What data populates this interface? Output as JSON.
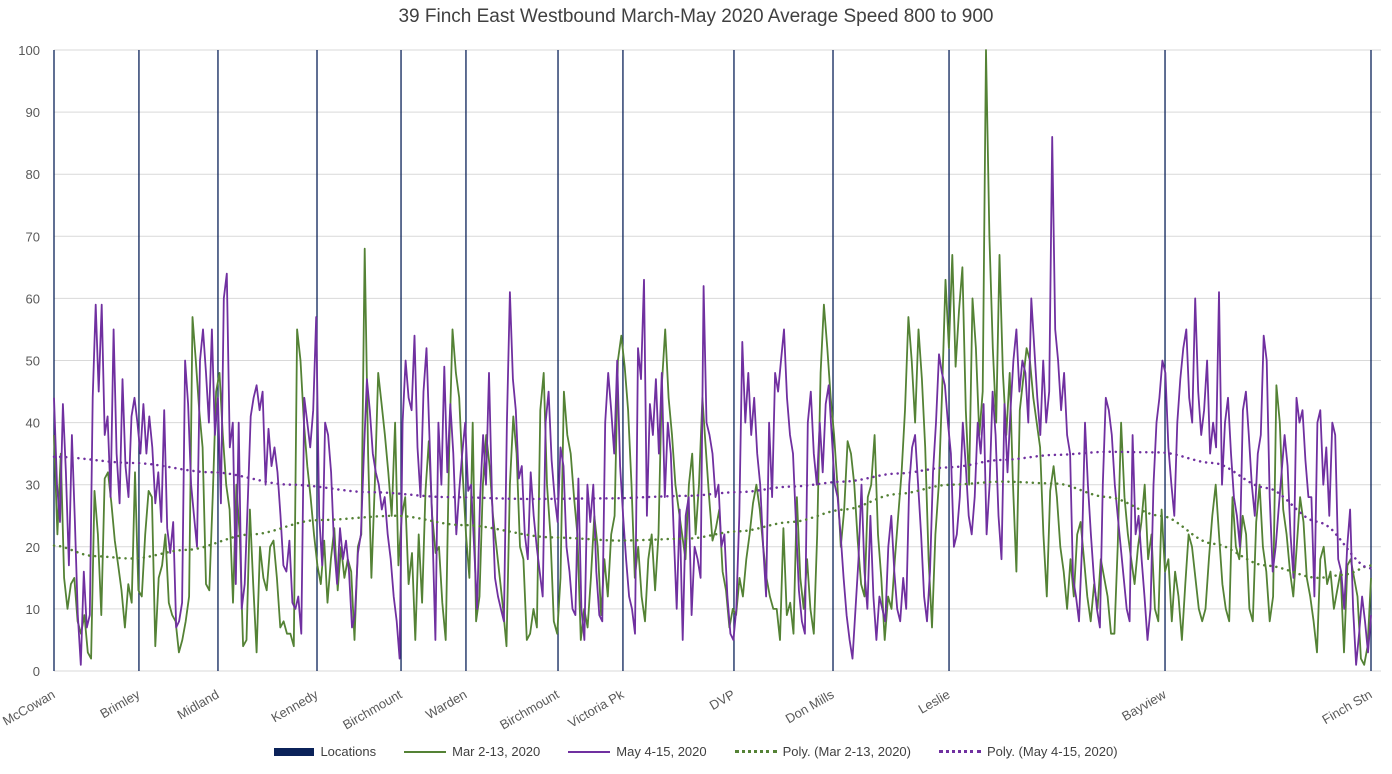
{
  "chart_data": {
    "type": "line",
    "title": "39 Finch East Westbound March-May 2020 Average Speed 800 to 900",
    "xlabel": "",
    "ylabel": "",
    "ylim": [
      0,
      100
    ],
    "yticks": [
      "0",
      "10",
      "20",
      "30",
      "40",
      "50",
      "60",
      "70",
      "80",
      "90",
      "100"
    ],
    "grid": true,
    "legend_position": "bottom",
    "x_range": [
      0,
      100
    ],
    "locations": [
      {
        "name": "McCowan",
        "x": 0
      },
      {
        "name": "Brimley",
        "x": 6.45
      },
      {
        "name": "Midland",
        "x": 12.45
      },
      {
        "name": "Kennedy",
        "x": 19.97
      },
      {
        "name": "Birchmount",
        "x": 26.35
      },
      {
        "name": "Warden",
        "x": 31.28
      },
      {
        "name": "Birchmount",
        "x": 38.27
      },
      {
        "name": "Victoria Pk",
        "x": 43.2
      },
      {
        "name": "DVP",
        "x": 51.63
      },
      {
        "name": "Don Mills",
        "x": 59.15
      },
      {
        "name": "Leslie",
        "x": 67.96
      },
      {
        "name": "Bayview",
        "x": 84.36
      },
      {
        "name": "Finch Stn",
        "x": 100
      }
    ],
    "series": [
      {
        "name": "Mar 2-13, 2020",
        "color": "#548235",
        "style": "solid",
        "values": [
          38,
          22,
          35,
          15,
          10,
          14,
          15,
          8,
          6,
          9,
          3,
          2,
          29,
          22,
          9,
          31,
          32,
          27,
          21,
          17,
          13,
          7,
          14,
          11,
          32,
          13,
          12,
          22,
          29,
          28,
          4,
          15,
          17,
          22,
          11,
          9,
          8,
          3,
          5,
          8,
          12,
          57,
          50,
          42,
          36,
          14,
          13,
          28,
          45,
          48,
          38,
          30,
          26,
          11,
          30,
          22,
          4,
          5,
          26,
          14,
          3,
          20,
          15,
          13,
          20,
          21,
          15,
          7,
          8,
          6,
          6,
          4,
          55,
          50,
          40,
          33,
          28,
          22,
          17,
          14,
          21,
          11,
          18,
          23,
          13,
          20,
          15,
          18,
          16,
          5,
          20,
          22,
          68,
          35,
          15,
          30,
          48,
          43,
          38,
          32,
          25,
          40,
          17,
          25,
          28,
          14,
          19,
          5,
          22,
          11,
          29,
          37,
          25,
          19,
          20,
          11,
          5,
          35,
          55,
          48,
          44,
          32,
          22,
          15,
          40,
          8,
          12,
          30,
          38,
          33,
          25,
          20,
          15,
          10,
          4,
          30,
          41,
          35,
          20,
          18,
          5,
          6,
          10,
          7,
          42,
          48,
          30,
          22,
          8,
          6,
          15,
          45,
          38,
          35,
          28,
          22,
          5,
          10,
          7,
          15,
          25,
          20,
          9,
          18,
          12,
          22,
          25,
          50,
          54,
          49,
          42,
          30,
          15,
          20,
          12,
          8,
          18,
          22,
          13,
          22,
          46,
          55,
          44,
          38,
          30,
          26,
          22,
          18,
          30,
          35,
          22,
          30,
          44,
          36,
          28,
          21,
          23,
          26,
          16,
          13,
          7,
          10,
          9,
          15,
          12,
          18,
          22,
          27,
          30,
          26,
          20,
          15,
          12,
          10,
          10,
          5,
          23,
          9,
          11,
          6,
          28,
          15,
          10,
          18,
          10,
          6,
          22,
          48,
          59,
          52,
          44,
          38,
          30,
          20,
          26,
          37,
          35,
          30,
          21,
          14,
          12,
          28,
          30,
          38,
          22,
          15,
          5,
          12,
          10,
          18,
          25,
          32,
          42,
          57,
          50,
          40,
          55,
          47,
          36,
          18,
          7,
          22,
          30,
          45,
          63,
          52,
          67,
          49,
          58,
          65,
          42,
          30,
          60,
          52,
          38,
          45,
          100,
          70,
          52,
          40,
          67,
          48,
          38,
          48,
          30,
          16,
          42,
          47,
          52,
          50,
          44,
          40,
          36,
          22,
          12,
          29,
          33,
          28,
          20,
          16,
          10,
          18,
          12,
          22,
          24,
          18,
          12,
          8,
          14,
          10,
          18,
          15,
          12,
          6,
          6,
          20,
          40,
          28,
          22,
          18,
          14,
          20,
          24,
          30,
          18,
          22,
          10,
          8,
          26,
          16,
          18,
          8,
          16,
          12,
          5,
          14,
          22,
          20,
          15,
          10,
          8,
          10,
          18,
          25,
          30,
          22,
          14,
          10,
          8,
          28,
          20,
          18,
          25,
          22,
          10,
          8,
          24,
          30,
          20,
          16,
          8,
          12,
          46,
          40,
          26,
          22,
          16,
          12,
          20,
          28,
          24,
          15,
          12,
          8,
          3,
          18,
          20,
          14,
          16,
          10,
          13,
          16,
          3,
          17,
          18,
          15,
          12,
          2,
          1,
          4,
          15
        ]
      },
      {
        "name": "May 4-15, 2020",
        "color": "#7030a0",
        "style": "solid",
        "values": [
          44,
          30,
          24,
          43,
          32,
          17,
          38,
          24,
          9,
          1,
          16,
          7,
          9,
          44,
          59,
          45,
          59,
          38,
          41,
          28,
          55,
          35,
          27,
          47,
          33,
          28,
          41,
          44,
          40,
          35,
          43,
          35,
          41,
          36,
          27,
          32,
          24,
          42,
          23,
          19,
          24,
          7,
          8,
          11,
          50,
          43,
          30,
          25,
          20,
          50,
          55,
          48,
          40,
          55,
          38,
          44,
          27,
          60,
          64,
          36,
          40,
          14,
          40,
          10,
          14,
          27,
          41,
          44,
          46,
          42,
          45,
          30,
          39,
          33,
          36,
          32,
          25,
          17,
          16,
          21,
          11,
          10,
          12,
          6,
          44,
          40,
          36,
          42,
          57,
          25,
          17,
          40,
          38,
          32,
          20,
          14,
          23,
          18,
          21,
          16,
          7,
          9,
          19,
          22,
          35,
          47,
          42,
          35,
          32,
          30,
          26,
          28,
          22,
          18,
          12,
          8,
          2,
          40,
          50,
          44,
          42,
          54,
          36,
          28,
          45,
          52,
          38,
          23,
          5,
          40,
          30,
          49,
          32,
          43,
          35,
          22,
          29,
          35,
          40,
          29,
          30,
          20,
          10,
          28,
          38,
          30,
          48,
          28,
          15,
          12,
          10,
          8,
          40,
          61,
          47,
          42,
          31,
          33,
          22,
          18,
          32,
          25,
          20,
          16,
          12,
          40,
          45,
          34,
          28,
          24,
          36,
          33,
          20,
          16,
          10,
          9,
          31,
          10,
          5,
          30,
          24,
          30,
          16,
          9,
          8,
          40,
          48,
          42,
          35,
          50,
          33,
          25,
          18,
          12,
          10,
          6,
          52,
          47,
          63,
          25,
          43,
          38,
          47,
          35,
          48,
          28,
          40,
          35,
          22,
          10,
          26,
          5,
          25,
          28,
          9,
          20,
          18,
          15,
          62,
          40,
          38,
          35,
          28,
          30,
          20,
          22,
          12,
          6,
          5,
          10,
          25,
          53,
          40,
          48,
          38,
          44,
          35,
          30,
          20,
          12,
          40,
          28,
          48,
          45,
          50,
          55,
          44,
          38,
          35,
          24,
          13,
          8,
          6,
          40,
          45,
          35,
          30,
          40,
          32,
          43,
          46,
          38,
          30,
          28,
          22,
          15,
          9,
          5,
          2,
          10,
          18,
          30,
          16,
          10,
          25,
          12,
          5,
          12,
          10,
          8,
          20,
          25,
          16,
          10,
          8,
          15,
          10,
          30,
          36,
          38,
          30,
          22,
          12,
          8,
          16,
          32,
          40,
          51,
          48,
          46,
          40,
          35,
          20,
          22,
          28,
          40,
          33,
          25,
          22,
          28,
          40,
          35,
          43,
          22,
          30,
          45,
          38,
          25,
          18,
          43,
          32,
          42,
          50,
          55,
          45,
          50,
          48,
          40,
          60,
          52,
          44,
          38,
          50,
          40,
          45,
          86,
          55,
          50,
          42,
          48,
          38,
          35,
          15,
          12,
          8,
          20,
          40,
          30,
          22,
          15,
          10,
          7,
          30,
          44,
          42,
          38,
          30,
          25,
          20,
          15,
          10,
          8,
          38,
          22,
          25,
          18,
          12,
          5,
          10,
          30,
          40,
          44,
          50,
          48,
          36,
          30,
          25,
          40,
          47,
          52,
          55,
          44,
          40,
          60,
          45,
          38,
          42,
          50,
          35,
          40,
          36,
          61,
          30,
          40,
          44,
          35,
          28,
          25,
          20,
          42,
          45,
          38,
          30,
          25,
          35,
          38,
          54,
          50,
          28,
          16,
          20,
          26,
          32,
          38,
          33,
          22,
          15,
          44,
          40,
          42,
          34,
          28,
          28,
          12,
          40,
          42,
          30,
          36,
          25,
          40,
          38,
          18,
          16,
          10,
          20,
          26,
          10,
          1,
          6,
          12,
          8,
          3,
          9
        ]
      },
      {
        "name": "Poly. (Mar 2-13, 2020)",
        "color": "#548235",
        "style": "dotted",
        "trend_points": [
          [
            0,
            20.2
          ],
          [
            3,
            18.5
          ],
          [
            6,
            18.1
          ],
          [
            10,
            19.5
          ],
          [
            15,
            22
          ],
          [
            20,
            24.3
          ],
          [
            26,
            25
          ],
          [
            31,
            23.5
          ],
          [
            38,
            21.5
          ],
          [
            43,
            21
          ],
          [
            48,
            21.3
          ],
          [
            52,
            22.5
          ],
          [
            56,
            24
          ],
          [
            60,
            26
          ],
          [
            64,
            28.5
          ],
          [
            68,
            30
          ],
          [
            72,
            30.5
          ],
          [
            76,
            30.2
          ],
          [
            80,
            28
          ],
          [
            84,
            25
          ],
          [
            88,
            20.5
          ],
          [
            92,
            17
          ],
          [
            96,
            15
          ],
          [
            98,
            15.5
          ],
          [
            100,
            17
          ]
        ]
      },
      {
        "name": "Poly. (May 4-15, 2020)",
        "color": "#7030a0",
        "style": "dotted",
        "trend_points": [
          [
            0,
            34.5
          ],
          [
            6,
            33.5
          ],
          [
            12,
            32
          ],
          [
            18,
            30
          ],
          [
            24,
            28.8
          ],
          [
            30,
            28
          ],
          [
            36,
            27.7
          ],
          [
            42,
            27.8
          ],
          [
            48,
            28.2
          ],
          [
            52,
            28.8
          ],
          [
            56,
            29.7
          ],
          [
            60,
            30.5
          ],
          [
            64,
            31.8
          ],
          [
            68,
            32.8
          ],
          [
            72,
            34
          ],
          [
            76,
            34.8
          ],
          [
            80,
            35.3
          ],
          [
            84,
            35.2
          ],
          [
            88,
            33.5
          ],
          [
            92,
            29.5
          ],
          [
            96,
            24
          ],
          [
            100,
            16.5
          ]
        ]
      }
    ]
  },
  "legend": {
    "items": [
      {
        "label": "Locations",
        "color": "#0b2259",
        "kind": "box"
      },
      {
        "label": "Mar 2-13, 2020",
        "color": "#548235",
        "kind": "line"
      },
      {
        "label": "May 4-15, 2020",
        "color": "#7030a0",
        "kind": "line"
      },
      {
        "label": "Poly. (Mar 2-13, 2020)",
        "color": "#548235",
        "kind": "dot"
      },
      {
        "label": "Poly. (May 4-15, 2020)",
        "color": "#7030a0",
        "kind": "dot"
      }
    ]
  },
  "colors": {
    "grid": "#d9d9d9",
    "location_line": "#0b2259",
    "axis_text": "#595959"
  }
}
